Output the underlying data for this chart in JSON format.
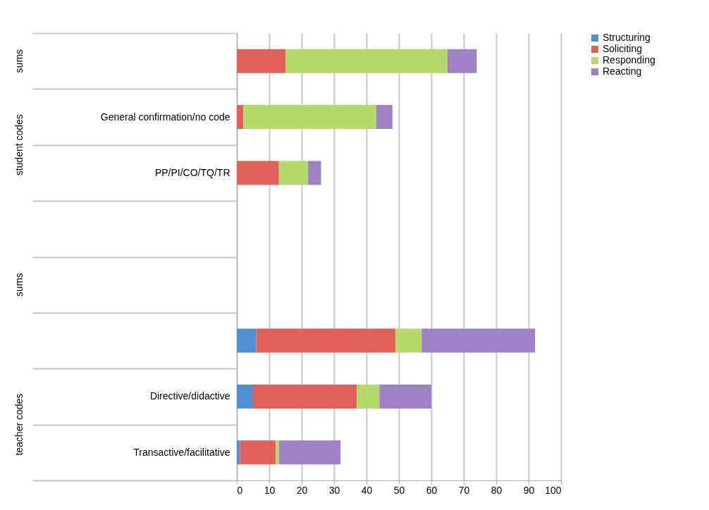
{
  "chart_data": {
    "type": "bar",
    "orientation": "horizontal",
    "stacked": true,
    "categories": [
      null,
      "General confirmation/no code",
      "PP/PI/CO/TQ/TR",
      null,
      null,
      null,
      "Directive/didactive",
      "Transactive/facilitative"
    ],
    "series": [
      {
        "name": "Structuring",
        "color": "#4f8fd6",
        "values": [
          null,
          null,
          null,
          null,
          null,
          6,
          5,
          1
        ]
      },
      {
        "name": "Soliciting",
        "color": "#e0605a",
        "values": [
          15,
          2,
          13,
          null,
          null,
          43,
          32,
          11
        ]
      },
      {
        "name": "Responding",
        "color": "#b5d96a",
        "values": [
          50,
          41,
          9,
          null,
          null,
          8,
          7,
          1
        ]
      },
      {
        "name": "Reacting",
        "color": "#9e82c4",
        "values": [
          9,
          5,
          4,
          null,
          null,
          35,
          16,
          19
        ]
      }
    ],
    "xlim": [
      0,
      100
    ],
    "xticks": [
      0,
      10,
      20,
      30,
      40,
      50,
      60,
      70,
      80,
      90,
      100
    ],
    "grid": "x",
    "legend": "right",
    "annotations": [
      "sums",
      "student codes",
      "sums",
      "teacher codes"
    ]
  }
}
